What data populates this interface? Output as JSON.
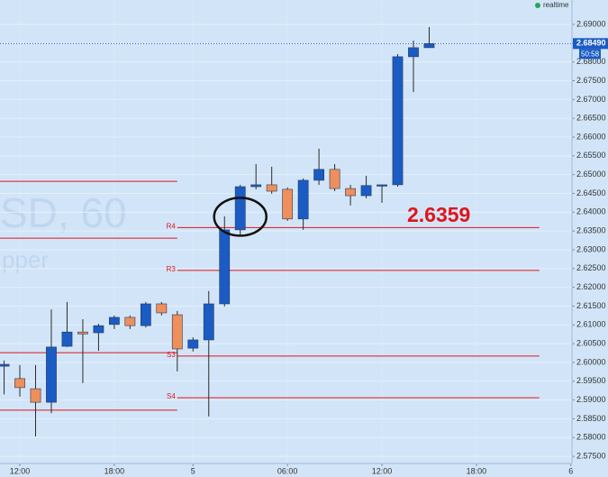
{
  "chart_data": {
    "type": "candlestick",
    "status": "realtime",
    "watermark": [
      "SD, 60",
      "pper"
    ],
    "annotation": "2.6359",
    "countdown": "50:58",
    "last_price": {
      "value": 2.6849,
      "label": "2.68490"
    },
    "x": [
      -1,
      0,
      1,
      2,
      3,
      4,
      5,
      6,
      7,
      8,
      9,
      10,
      11,
      12,
      13,
      14,
      15,
      16,
      17,
      18,
      19,
      20,
      21,
      22,
      23,
      24,
      25,
      26
    ],
    "open": [
      2.599,
      2.5957,
      2.593,
      2.5894,
      2.6043,
      2.6081,
      2.6079,
      2.6101,
      2.612,
      2.6098,
      2.6156,
      2.6127,
      2.6038,
      2.606,
      2.6156,
      2.6353,
      2.6468,
      2.6473,
      2.6461,
      2.6382,
      2.6485,
      2.6514,
      2.6463,
      2.6444,
      2.6471,
      2.6473,
      2.6814,
      2.6838
    ],
    "high": [
      2.6005,
      2.5993,
      2.5993,
      2.6141,
      2.6161,
      2.6115,
      2.6103,
      2.6125,
      2.6125,
      2.6161,
      2.6161,
      2.6137,
      2.6067,
      2.619,
      2.6389,
      2.6473,
      2.6528,
      2.6521,
      2.6466,
      2.649,
      2.6569,
      2.6528,
      2.6473,
      2.6497,
      2.6473,
      2.6821,
      2.6857,
      2.6893
    ],
    "low": [
      2.5915,
      2.5909,
      2.5803,
      2.5865,
      2.6041,
      2.5945,
      2.6031,
      2.6089,
      2.6089,
      2.6093,
      2.6125,
      2.5976,
      2.6029,
      2.5856,
      2.6149,
      2.6341,
      2.6461,
      2.6449,
      2.6377,
      2.6353,
      2.6473,
      2.6456,
      2.6418,
      2.6437,
      2.6425,
      2.6468,
      2.672,
      2.6838
    ],
    "close": [
      2.5995,
      2.5933,
      2.5894,
      2.6041,
      2.6081,
      2.6076,
      2.6098,
      2.612,
      2.6098,
      2.6156,
      2.6132,
      2.6036,
      2.606,
      2.6156,
      2.6353,
      2.6468,
      2.6473,
      2.6456,
      2.6382,
      2.6485,
      2.6514,
      2.6463,
      2.6444,
      2.6471,
      2.6473,
      2.6814,
      2.6838,
      2.6849
    ],
    "up_color": "#1a5bc4",
    "down_color": "#ee8f5c",
    "level_color": "#e0141a",
    "previous_levels": {
      "x0": -1.26,
      "x1": 10,
      "values": [
        2.6482,
        2.6331,
        2.6026,
        2.5873
      ]
    },
    "levels": {
      "x0": 10,
      "x1": 33,
      "values": [
        2.6359,
        2.6245,
        2.6017,
        2.5906
      ],
      "labels": [
        "R4",
        "R3",
        "S3",
        "S4"
      ]
    },
    "xlim": [
      -1.26,
      35.07
    ],
    "ylim": [
      2.5731,
      2.6965
    ],
    "xticks": [
      {
        "value": 0,
        "label": "12:00"
      },
      {
        "value": 6,
        "label": "18:00"
      },
      {
        "value": 11,
        "label": "5"
      },
      {
        "value": 17,
        "label": "06:00"
      },
      {
        "value": 23,
        "label": "12:00"
      },
      {
        "value": 29,
        "label": "18:00"
      },
      {
        "value": 35,
        "label": "6"
      }
    ],
    "yticks": [
      {
        "value": 2.575,
        "label": "2.57500"
      },
      {
        "value": 2.58,
        "label": "2.58000"
      },
      {
        "value": 2.585,
        "label": "2.58500"
      },
      {
        "value": 2.59,
        "label": "2.59000"
      },
      {
        "value": 2.595,
        "label": "2.59500"
      },
      {
        "value": 2.6,
        "label": "2.60000"
      },
      {
        "value": 2.605,
        "label": "2.60500"
      },
      {
        "value": 2.61,
        "label": "2.61000"
      },
      {
        "value": 2.615,
        "label": "2.61500"
      },
      {
        "value": 2.62,
        "label": "2.62000"
      },
      {
        "value": 2.625,
        "label": "2.62500"
      },
      {
        "value": 2.63,
        "label": "2.63000"
      },
      {
        "value": 2.635,
        "label": "2.63500"
      },
      {
        "value": 2.64,
        "label": "2.64000"
      },
      {
        "value": 2.645,
        "label": "2.64500"
      },
      {
        "value": 2.65,
        "label": "2.65000"
      },
      {
        "value": 2.655,
        "label": "2.65500"
      },
      {
        "value": 2.66,
        "label": "2.66000"
      },
      {
        "value": 2.665,
        "label": "2.66500"
      },
      {
        "value": 2.67,
        "label": "2.67000"
      },
      {
        "value": 2.675,
        "label": "2.67500"
      },
      {
        "value": 2.68,
        "label": "2.68000"
      },
      {
        "value": 2.685,
        "label": "2.68500"
      },
      {
        "value": 2.69,
        "label": "2.69000"
      }
    ],
    "grid": true
  }
}
